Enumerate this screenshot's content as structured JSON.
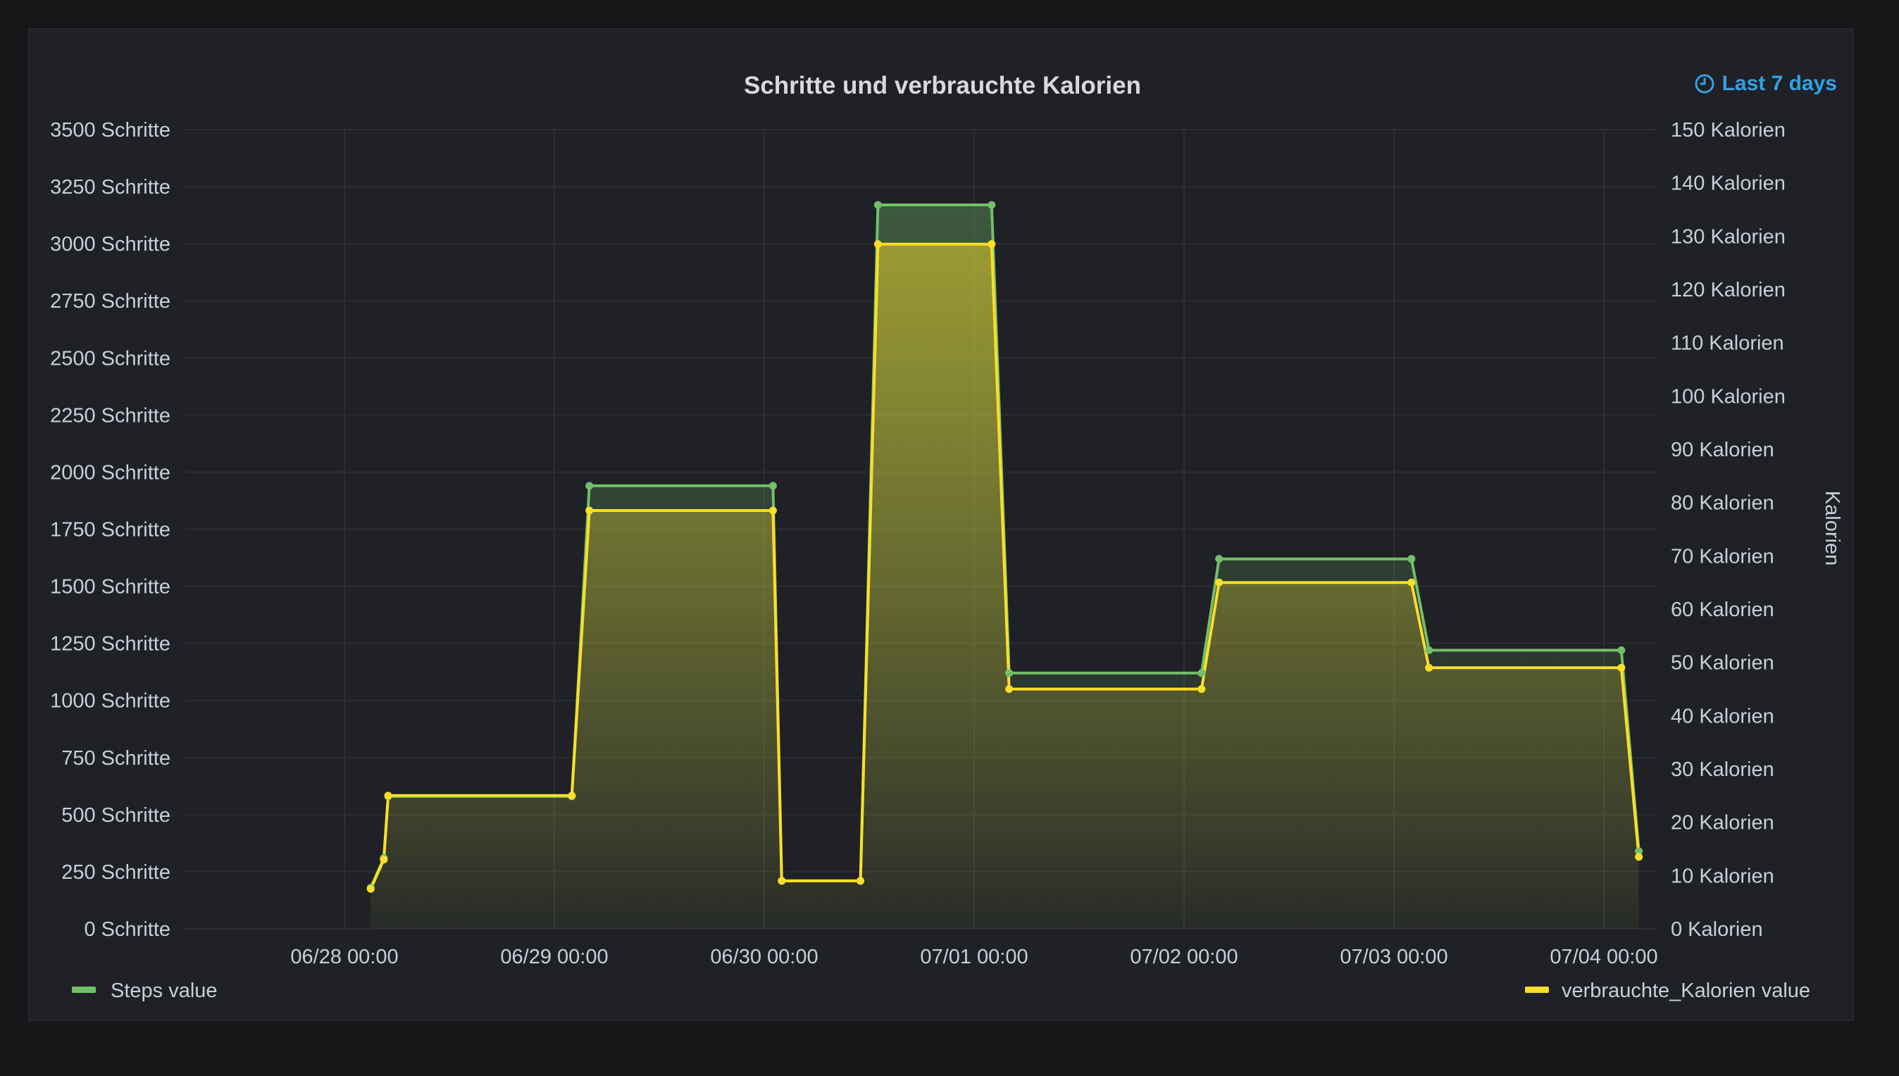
{
  "panel": {
    "title": "Schritte und verbrauchte Kalorien",
    "time_range": "Last 7 days"
  },
  "colors": {
    "steps": "#73bf69",
    "calories": "#fade2a",
    "grid": "#2c2e33",
    "text": "#c7d0d9"
  },
  "chart_data": {
    "type": "area",
    "title": "Schritte und verbrauchte Kalorien",
    "x_ticks": [
      "06/28 00:00",
      "06/29 00:00",
      "06/30 00:00",
      "07/01 00:00",
      "07/02 00:00",
      "07/03 00:00",
      "07/04 00:00"
    ],
    "y_left": {
      "label": "",
      "unit": "Schritte",
      "range": [
        0,
        3500
      ],
      "ticks": [
        "0 Schritte",
        "250 Schritte",
        "500 Schritte",
        "750 Schritte",
        "1000 Schritte",
        "1250 Schritte",
        "1500 Schritte",
        "1750 Schritte",
        "2000 Schritte",
        "2250 Schritte",
        "2500 Schritte",
        "2750 Schritte",
        "3000 Schritte",
        "3250 Schritte",
        "3500 Schritte"
      ]
    },
    "y_right": {
      "label": "Kalorien",
      "unit": "Kalorien",
      "range": [
        0,
        150
      ],
      "ticks": [
        "0 Kalorien",
        "10 Kalorien",
        "20 Kalorien",
        "30 Kalorien",
        "40 Kalorien",
        "50 Kalorien",
        "60 Kalorien",
        "70 Kalorien",
        "80 Kalorien",
        "90 Kalorien",
        "100 Kalorien",
        "110 Kalorien",
        "120 Kalorien",
        "130 Kalorien",
        "140 Kalorien",
        "150 Kalorien"
      ]
    },
    "grid": true,
    "legend": [
      "Steps value",
      "verbrauchte_Kalorien value"
    ],
    "series": [
      {
        "name": "Steps value",
        "axis": "left",
        "points": [
          {
            "x": "06/28 03:00",
            "y": 180
          },
          {
            "x": "06/28 04:30",
            "y": 310
          },
          {
            "x": "06/28 05:00",
            "y": 580
          },
          {
            "x": "06/29 02:00",
            "y": 580
          },
          {
            "x": "06/29 04:00",
            "y": 1940
          },
          {
            "x": "06/30 01:00",
            "y": 1940
          },
          {
            "x": "06/30 02:00",
            "y": 210
          },
          {
            "x": "06/30 11:00",
            "y": 210
          },
          {
            "x": "06/30 13:00",
            "y": 3170
          },
          {
            "x": "07/01 02:00",
            "y": 3170
          },
          {
            "x": "07/01 04:00",
            "y": 1120
          },
          {
            "x": "07/02 02:00",
            "y": 1120
          },
          {
            "x": "07/02 04:00",
            "y": 1620
          },
          {
            "x": "07/03 02:00",
            "y": 1620
          },
          {
            "x": "07/03 04:00",
            "y": 1220
          },
          {
            "x": "07/04 02:00",
            "y": 1220
          },
          {
            "x": "07/04 04:00",
            "y": 340
          }
        ]
      },
      {
        "name": "verbrauchte_Kalorien value",
        "axis": "right",
        "points": [
          {
            "x": "06/28 03:00",
            "y": 7.5
          },
          {
            "x": "06/28 04:30",
            "y": 13
          },
          {
            "x": "06/28 05:00",
            "y": 25
          },
          {
            "x": "06/29 02:00",
            "y": 25
          },
          {
            "x": "06/29 04:00",
            "y": 78.5
          },
          {
            "x": "06/30 01:00",
            "y": 78.5
          },
          {
            "x": "06/30 02:00",
            "y": 9
          },
          {
            "x": "06/30 11:00",
            "y": 9
          },
          {
            "x": "06/30 13:00",
            "y": 128.5
          },
          {
            "x": "07/01 02:00",
            "y": 128.5
          },
          {
            "x": "07/01 04:00",
            "y": 45
          },
          {
            "x": "07/02 02:00",
            "y": 45
          },
          {
            "x": "07/02 04:00",
            "y": 65
          },
          {
            "x": "07/03 02:00",
            "y": 65
          },
          {
            "x": "07/03 04:00",
            "y": 49
          },
          {
            "x": "07/04 02:00",
            "y": 49
          },
          {
            "x": "07/04 04:00",
            "y": 13.5
          }
        ]
      }
    ]
  }
}
